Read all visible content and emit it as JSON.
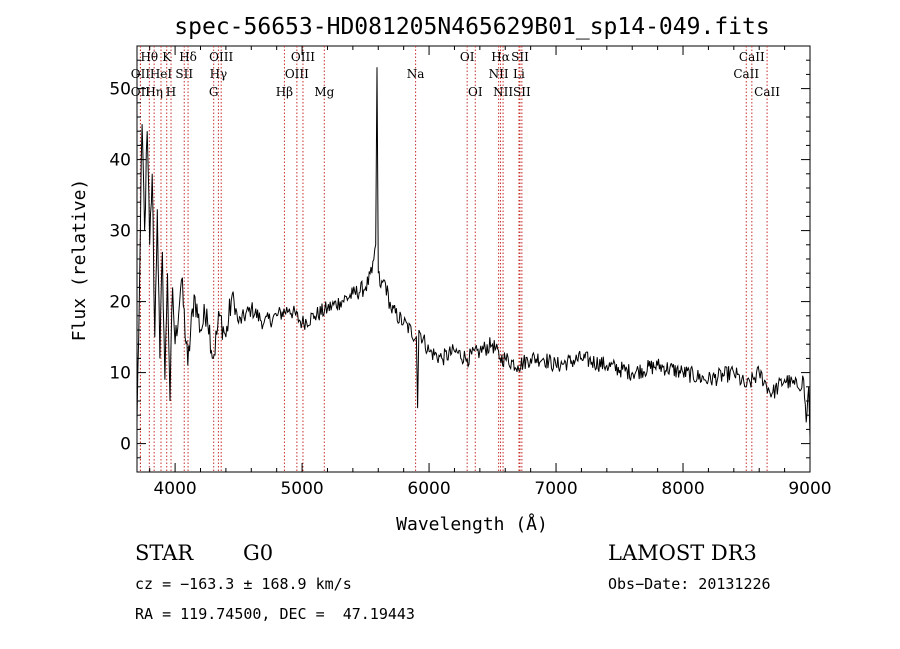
{
  "chart_data": {
    "type": "line",
    "title": "spec-56653-HD081205N465629B01_sp14-049.fits",
    "xlabel": "Wavelength (Å)",
    "ylabel": "Flux (relative)",
    "xlim": [
      3700,
      9000
    ],
    "ylim": [
      -4,
      56
    ],
    "xticks": [
      4000,
      5000,
      6000,
      7000,
      8000,
      9000
    ],
    "yticks": [
      0,
      10,
      20,
      30,
      40,
      50
    ],
    "grid": false,
    "series": [
      {
        "name": "flux",
        "x": [
          3700,
          3720,
          3740,
          3760,
          3780,
          3800,
          3820,
          3840,
          3860,
          3880,
          3900,
          3920,
          3940,
          3960,
          3980,
          4000,
          4050,
          4100,
          4150,
          4200,
          4250,
          4300,
          4350,
          4400,
          4450,
          4500,
          4600,
          4700,
          4800,
          4900,
          5000,
          5100,
          5200,
          5300,
          5400,
          5500,
          5550,
          5580,
          5590,
          5600,
          5620,
          5650,
          5700,
          5800,
          5900,
          5910,
          5920,
          6000,
          6100,
          6200,
          6300,
          6400,
          6500,
          6560,
          6600,
          6700,
          6800,
          6900,
          7000,
          7200,
          7400,
          7600,
          7800,
          8000,
          8200,
          8400,
          8500,
          8600,
          8700,
          8800,
          8900,
          8950,
          8970,
          8990,
          9000
        ],
        "values": [
          3,
          22,
          45,
          30,
          44,
          28,
          38,
          15,
          33,
          12,
          27,
          9,
          24,
          6,
          22,
          14,
          23,
          11,
          21,
          16,
          19,
          12,
          18,
          15,
          21,
          17,
          19,
          17,
          18,
          19,
          17,
          18,
          19,
          20,
          21,
          22,
          24,
          28,
          53,
          24,
          22,
          23,
          19,
          17,
          15,
          5,
          16,
          13,
          12,
          13,
          12,
          13,
          14,
          12,
          12,
          11,
          12,
          12,
          11,
          12,
          11,
          10,
          11,
          10,
          9,
          10,
          8,
          10,
          7,
          9,
          8,
          9,
          3,
          8,
          1
        ]
      }
    ],
    "lines": [
      {
        "label": "OII",
        "x": 3727,
        "row": 2
      },
      {
        "label": "Hθ",
        "x": 3797,
        "row": 0
      },
      {
        "label": "OII",
        "x": 3727,
        "row": 1
      },
      {
        "label": "Hη",
        "x": 3835,
        "row": 2
      },
      {
        "label": "HeI",
        "x": 3889,
        "row": 1
      },
      {
        "label": "K",
        "x": 3934,
        "row": 0
      },
      {
        "label": "H",
        "x": 3968,
        "row": 2
      },
      {
        "label": "SII",
        "x": 4072,
        "row": 1
      },
      {
        "label": "Hδ",
        "x": 4102,
        "row": 0
      },
      {
        "label": "G",
        "x": 4304,
        "row": 2
      },
      {
        "label": "Hγ",
        "x": 4341,
        "row": 1
      },
      {
        "label": "OIII",
        "x": 4363,
        "row": 0
      },
      {
        "label": "Hβ",
        "x": 4861,
        "row": 2
      },
      {
        "label": "OIII",
        "x": 4959,
        "row": 1
      },
      {
        "label": "OIII",
        "x": 5007,
        "row": 0
      },
      {
        "label": "Mg",
        "x": 5175,
        "row": 2
      },
      {
        "label": "Na",
        "x": 5894,
        "row": 1
      },
      {
        "label": "OI",
        "x": 6300,
        "row": 0
      },
      {
        "label": "OI",
        "x": 6364,
        "row": 2
      },
      {
        "label": "NII",
        "x": 6548,
        "row": 1
      },
      {
        "label": "Hα",
        "x": 6563,
        "row": 0
      },
      {
        "label": "NII",
        "x": 6583,
        "row": 2
      },
      {
        "label": "Li",
        "x": 6708,
        "row": 1
      },
      {
        "label": "SII",
        "x": 6716,
        "row": 0
      },
      {
        "label": "SII",
        "x": 6731,
        "row": 2
      },
      {
        "label": "CaII",
        "x": 8498,
        "row": 1
      },
      {
        "label": "CaII",
        "x": 8542,
        "row": 0
      },
      {
        "label": "CaII",
        "x": 8662,
        "row": 2
      }
    ]
  },
  "info": {
    "object_class": "STAR",
    "subclass": "G0",
    "survey": "LAMOST DR3",
    "cz": "cz = −163.3 ± 168.9 km/s",
    "obs_date": "Obs−Date: 20131226",
    "coords": "RA = 119.74500, DEC =  47.19443"
  }
}
